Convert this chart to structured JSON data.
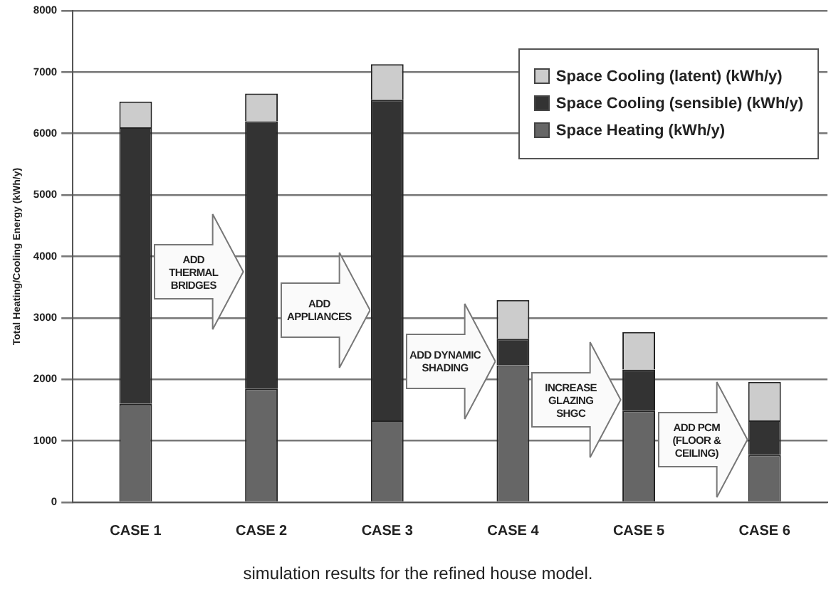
{
  "chart_data": {
    "type": "bar",
    "stacked": true,
    "ylabel": "Total Heating/Cooling Energy (kWh/y)",
    "categories": [
      "CASE 1",
      "CASE 2",
      "CASE 3",
      "CASE 4",
      "CASE 5",
      "CASE 6"
    ],
    "series": [
      {
        "name": "Space Heating (kWh/y)",
        "color": "#666666",
        "values": [
          1600,
          1850,
          1330,
          2230,
          1490,
          770
        ]
      },
      {
        "name": "Space Cooling (sensible) (kWh/y)",
        "color": "#333333",
        "values": [
          4500,
          4350,
          5220,
          430,
          670,
          560
        ]
      },
      {
        "name": "Space Cooling (latent) (kWh/y)",
        "color": "#cccccc",
        "values": [
          420,
          450,
          580,
          630,
          610,
          630
        ]
      }
    ],
    "ylim": [
      0,
      8000
    ],
    "yticks": [
      0,
      1000,
      2000,
      3000,
      4000,
      5000,
      6000,
      7000,
      8000
    ],
    "grid": "y",
    "legend": "top right",
    "annotations": [
      "ADD THERMAL BRIDGES",
      "ADD APPLIANCES",
      "ADD DYNAMIC SHADING",
      "INCREASE GLAZING SHGC",
      "ADD PCM (FLOOR & CEILING)",
      "simulation results for the refined house model."
    ]
  }
}
